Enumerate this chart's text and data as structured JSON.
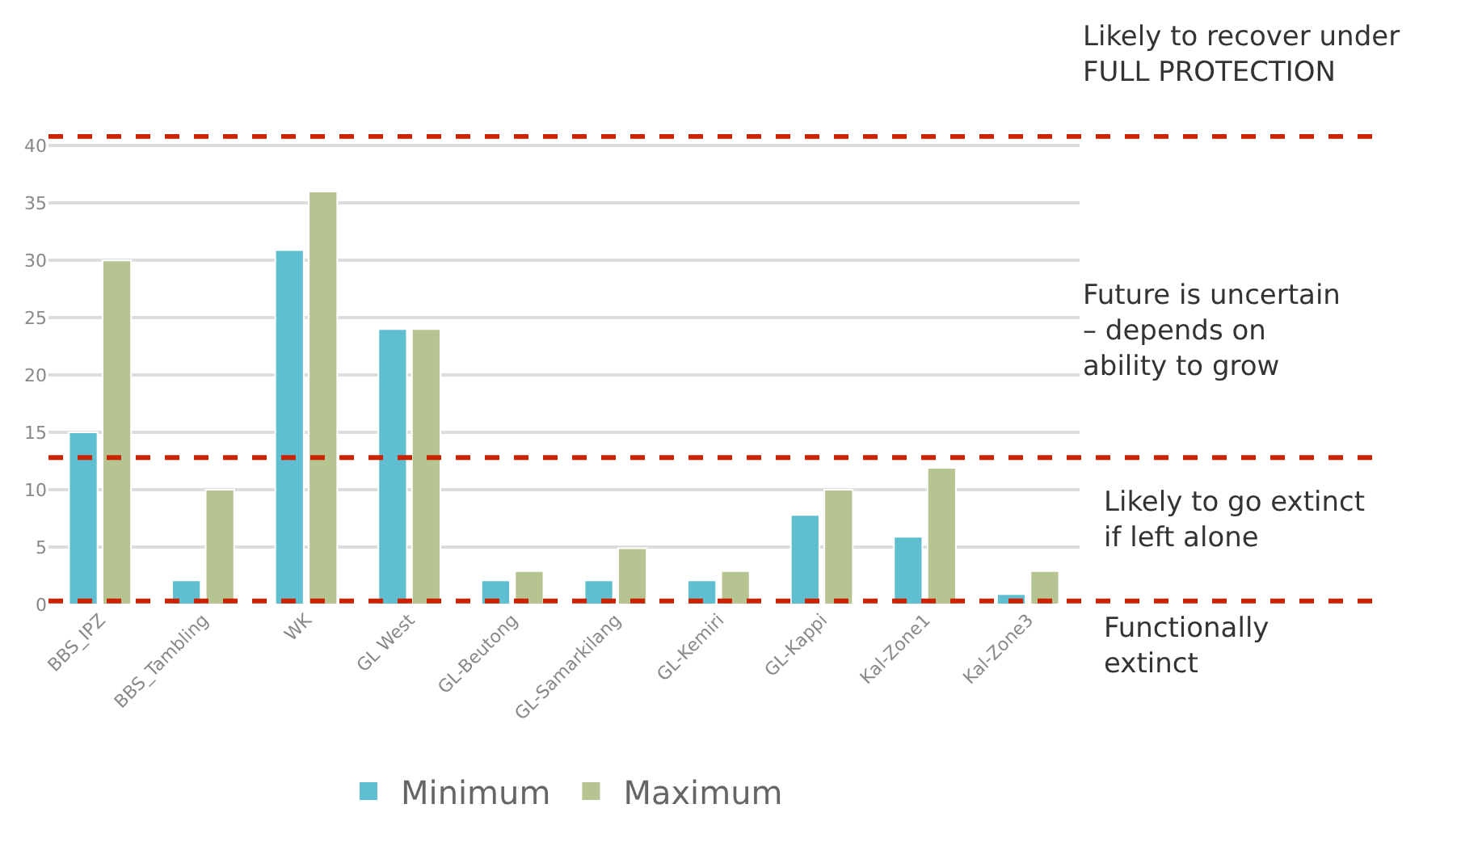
{
  "chart_data": {
    "type": "bar",
    "categories": [
      "BBS_IPZ",
      "BBS_Tambling",
      "WK",
      "GL West",
      "GL-Beutong",
      "GL-Samarkilang",
      "GL-Kemiri",
      "GL-Kappi",
      "Kal-Zone1",
      "Kal-Zone3"
    ],
    "series": [
      {
        "name": "Minimum",
        "color": "#5fbfd0",
        "values": [
          15,
          2.1,
          30.9,
          24,
          2.1,
          2.1,
          2.1,
          7.8,
          5.9,
          0.9
        ]
      },
      {
        "name": "Maximum",
        "color": "#b5c490",
        "values": [
          30,
          10,
          36,
          24,
          2.9,
          4.9,
          2.9,
          10,
          11.9,
          2.9
        ]
      }
    ],
    "ylim": [
      0,
      41
    ],
    "yticks": [
      0,
      5,
      10,
      15,
      20,
      25,
      30,
      35,
      40
    ],
    "grid": "y",
    "legend": "bottom",
    "ref_lines": [
      {
        "axis": "y",
        "value": 40.8,
        "label": "Likely to recover under FULL PROTECTION",
        "color": "#cc2200",
        "line_style": "dashed"
      },
      {
        "axis": "y",
        "value": 12.8,
        "label": "Future is uncertain – depends on ability to grow",
        "color": "#cc2200",
        "line_style": "dashed"
      },
      {
        "axis": "y",
        "value": 0.3,
        "label": "Likely to go extinct if left alone",
        "color": "#cc2200",
        "line_style": "dashed"
      }
    ],
    "annotations": [
      "Functionally extinct"
    ]
  }
}
